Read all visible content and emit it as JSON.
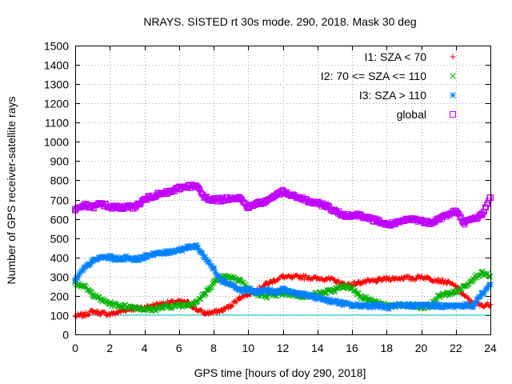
{
  "chart_data": {
    "type": "scatter",
    "title": "NRAYS. SISTED rt 30s mode. 290, 2018. Mask 30 deg",
    "xlabel": "GPS time [hours of doy 290, 2018]",
    "ylabel": "Number of GPS receiver-satellite rays",
    "xlim": [
      0,
      24
    ],
    "ylim": [
      0,
      1500
    ],
    "x_ticks": [
      "0",
      "2",
      "4",
      "6",
      "8",
      "10",
      "12",
      "14",
      "16",
      "18",
      "20",
      "22",
      "24"
    ],
    "y_ticks": [
      "0",
      "100",
      "200",
      "300",
      "400",
      "500",
      "600",
      "700",
      "800",
      "900",
      "1000",
      "1100",
      "1200",
      "1300",
      "1400",
      "1500"
    ],
    "grid": true,
    "legend_position": "top-right",
    "mask_line": {
      "value": 100,
      "color": "#00c0c0"
    },
    "series": [
      {
        "name": "I1: SZA < 70",
        "marker": "+",
        "color": "#ff0000",
        "x": [
          0,
          0.5,
          1,
          1.5,
          2,
          2.5,
          3,
          3.5,
          4,
          4.5,
          5,
          5.5,
          6,
          6.5,
          7,
          7.5,
          8,
          8.5,
          9,
          9.5,
          10,
          10.5,
          11,
          11.5,
          12,
          12.5,
          13,
          13.5,
          14,
          14.5,
          15,
          15.5,
          16,
          16.5,
          17,
          17.5,
          18,
          18.5,
          19,
          19.5,
          20,
          20.5,
          21,
          21.5,
          22,
          22.5,
          23,
          23.5,
          24
        ],
        "values": [
          95,
          100,
          120,
          110,
          105,
          115,
          130,
          135,
          140,
          150,
          160,
          165,
          170,
          165,
          130,
          110,
          115,
          125,
          150,
          190,
          210,
          230,
          260,
          280,
          300,
          295,
          300,
          295,
          290,
          290,
          280,
          260,
          260,
          270,
          275,
          280,
          290,
          290,
          295,
          290,
          300,
          290,
          280,
          270,
          250,
          200,
          160,
          150,
          155
        ]
      },
      {
        "name": "I2: 70 <= SZA <= 110",
        "marker": "x",
        "color": "#00b000",
        "x": [
          0,
          0.5,
          1,
          1.5,
          2,
          2.5,
          3,
          3.5,
          4,
          4.5,
          5,
          5.5,
          6,
          6.5,
          7,
          7.5,
          8,
          8.5,
          9,
          9.5,
          10,
          10.5,
          11,
          11.5,
          12,
          12.5,
          13,
          13.5,
          14,
          14.5,
          15,
          15.5,
          16,
          16.5,
          17,
          17.5,
          18,
          18.5,
          19,
          19.5,
          20,
          20.5,
          21,
          21.5,
          22,
          22.5,
          23,
          23.5,
          24
        ],
        "values": [
          270,
          250,
          210,
          180,
          160,
          150,
          145,
          140,
          130,
          130,
          140,
          145,
          150,
          155,
          170,
          210,
          270,
          300,
          300,
          285,
          240,
          210,
          200,
          205,
          210,
          210,
          200,
          200,
          210,
          220,
          230,
          250,
          240,
          200,
          180,
          160,
          150,
          150,
          150,
          150,
          140,
          145,
          200,
          210,
          220,
          250,
          290,
          320,
          300
        ]
      },
      {
        "name": "I3: SZA > 110",
        "marker": "*",
        "color": "#0080ff",
        "x": [
          0,
          0.5,
          1,
          1.5,
          2,
          2.5,
          3,
          3.5,
          4,
          4.5,
          5,
          5.5,
          6,
          6.5,
          7,
          7.5,
          8,
          8.5,
          9,
          9.5,
          10,
          10.5,
          11,
          11.5,
          12,
          12.5,
          13,
          13.5,
          14,
          14.5,
          15,
          15.5,
          16,
          16.5,
          17,
          17.5,
          18,
          18.5,
          19,
          19.5,
          20,
          20.5,
          21,
          21.5,
          22,
          22.5,
          23,
          23.5,
          24
        ],
        "values": [
          280,
          340,
          380,
          400,
          400,
          390,
          400,
          390,
          400,
          420,
          420,
          430,
          440,
          450,
          460,
          400,
          340,
          280,
          260,
          230,
          230,
          220,
          230,
          220,
          230,
          220,
          210,
          200,
          190,
          180,
          170,
          160,
          150,
          150,
          150,
          150,
          140,
          145,
          150,
          150,
          150,
          150,
          150,
          145,
          150,
          150,
          150,
          210,
          260
        ]
      },
      {
        "name": "global",
        "marker": "square",
        "color": "#c000ff",
        "x": [
          0,
          0.5,
          1,
          1.5,
          2,
          2.5,
          3,
          3.5,
          4,
          4.5,
          5,
          5.5,
          6,
          6.5,
          7,
          7.5,
          8,
          8.5,
          9,
          9.5,
          10,
          10.5,
          11,
          11.5,
          12,
          12.5,
          13,
          13.5,
          14,
          14.5,
          15,
          15.5,
          16,
          16.5,
          17,
          17.5,
          18,
          18.5,
          19,
          19.5,
          20,
          20.5,
          21,
          21.5,
          22,
          22.5,
          23,
          23.5,
          24
        ],
        "values": [
          650,
          670,
          660,
          680,
          660,
          660,
          660,
          665,
          700,
          720,
          730,
          740,
          760,
          770,
          770,
          710,
          700,
          700,
          710,
          710,
          660,
          680,
          690,
          720,
          740,
          720,
          710,
          690,
          680,
          670,
          640,
          620,
          620,
          620,
          600,
          590,
          570,
          575,
          590,
          600,
          590,
          580,
          600,
          620,
          640,
          580,
          600,
          620,
          710
        ]
      }
    ]
  }
}
